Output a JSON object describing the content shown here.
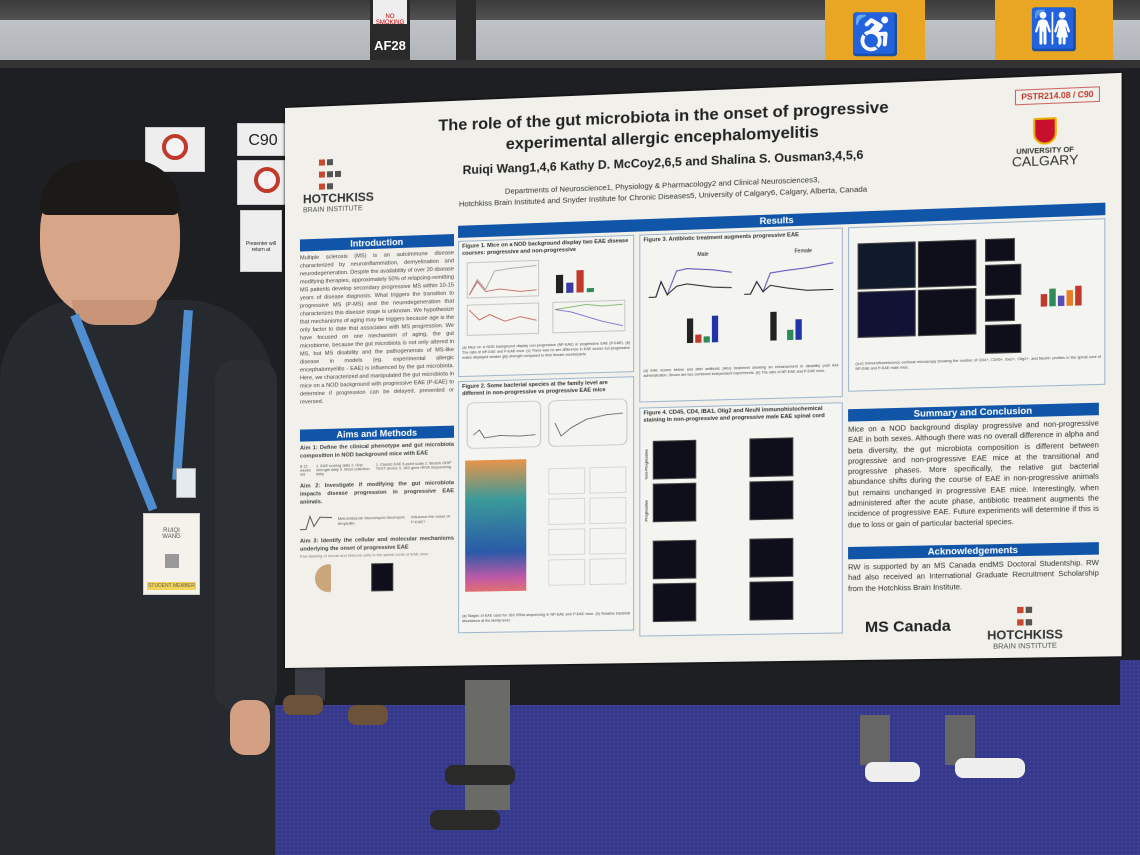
{
  "scene": {
    "pillar_label": "AF28",
    "no_smoking_sign": "NO SMOKING",
    "board_number": "C90",
    "no_photo_sign": "NO PHOTOS / RECORDING",
    "presenter_note": "Presenter will return at",
    "badge": {
      "name_line1": "RUIQI",
      "name_line2": "WANG",
      "ribbon": "STUDENT MEMBER"
    }
  },
  "poster": {
    "code": "PSTR214.08 / C90",
    "title_line1": "The role of the gut microbiota in the onset of progressive",
    "title_line2": "experimental allergic encephalomyelitis",
    "authors": "Ruiqi Wang1,4,6 Kathy D. McCoy2,6,5 and Shalina S. Ousman3,4,5,6",
    "affiliation_line1": "Departments of Neuroscience1, Physiology & Pharmacology2 and Clinical Neurosciences3,",
    "affiliation_line2": "Hotchkiss Brain Institute4 and Snyder Institute for Chronic Diseases5, University of Calgary6, Calgary, Alberta, Canada",
    "logo_left": {
      "name": "HOTCHKISS",
      "sub": "BRAIN INSTITUTE"
    },
    "logo_right": {
      "line1": "UNIVERSITY OF",
      "line2": "CALGARY"
    },
    "introduction": {
      "heading": "Introduction",
      "text": "Multiple sclerosis (MS) is an autoimmune disease characterized by neuroinflammation, demyelination and neurodegeneration. Despite the availability of over 20 disease modifying therapies, approximately 50% of relapsing-remitting MS patients develop secondary progressive MS within 10-15 years of disease diagnosis. What triggers the transition to progressive MS (P-MS) and the neurodegeneration that characterizes this disease stage is unknown. We hypothesize that mechanisms of aging may be triggers because age is the only factor to date that associates with MS progression. We have focused on one mechanism of aging, the gut microbiome, because the gut microbiota is not only altered in MS, but MS disability and the pathogenensis of MS-like disease in models (eg. experimental allergic encephalomyelitis - EAE) is influenced by the gut microbiota. Here, we characterized and manipulated the gut microbiota in mice on a NOD background with progressive EAE (P-EAE) to determine if progression can be delayed, prevented or reversed."
    },
    "aims": {
      "heading": "Aims and Methods",
      "aim1": "Aim 1: Define the clinical phenotype and gut microbiota composition in NOD background mice with EAE",
      "aim1_steps": "1. EAE scoring daily  2. Grip strength daily  3. Stool collection daily",
      "aim1_methods": "1. Classic EAE 5-point scale  2. Bioseb GRIP TEST device  3. 16S gene rRNA Sequencing",
      "aim1_age": "8-12 weeks old",
      "aim2": "Aim 2: Investigate if modifying the gut microbiota impacts disease progression in progressive EAE animals.",
      "aim2_drugs": "Metronidazole  Vancomycin  Neomycin  Ampicillin",
      "aim2_effect": "Influence the onset of P-EAE?",
      "aim3": "Aim 3: Identify the cellular and molecular mechanisms underlying the onset of progressive EAE",
      "aim3_sub": "Pan-staining of neural and immune cells in the spinal cords of EAE mice"
    },
    "results": {
      "heading": "Results",
      "fig1": "Figure 1. Mice on a NOD background display two EAE disease courses: progressive and non-progressive",
      "fig1_caption": "(a) Mice on a NOD background display non-progressive (NP-EAE) or progressive EAE (P-EAE). (b) The ratio of NP-EAE and P-EAE mice. (c) There was no sex difference in EAE scores but progressive males displayed weaker grip strength compared to their female counterparts.",
      "fig2": "Figure 2. Some bacterial species at the family level are different in non-progressive vs progressive EAE mice",
      "fig2_caption": "(a) Stages of EAE used for 16S rRNA sequencing in NP-EAE and P-EAE mice. (b) Relative bacterial abundance at the family level.",
      "fig3": "Figure 3. Antibiotic treatment augments progressive EAE",
      "fig3_male": "Male",
      "fig3_female": "Female",
      "fig3_caption": "(a) EAE scores before and after antibiotic (Abx) treatment showing an enhancement in disability post Abx administration. Shown are two combined independent experiments. (b) The ratio of NP-EAE and P-EAE mice.",
      "fig4": "Figure 4. CD45, CD4, IBA1, Olig2 and NeuN immunohistochemical staining in non-progressive and progressive male EAE spinal cord",
      "fig5_caption": "(a-e) Immunofluorescence confocal microscopy showing the number of CD4+, CD45+, Iba1+, Olig2+, and NeuN+ profiles in the spinal cord of NP-EAE and P-EAE male mice.",
      "label_nonprog": "Non-Progressive",
      "label_prog": "Progressive"
    },
    "summary": {
      "heading": "Summary and Conclusion",
      "text": "Mice on a NOD background display progressive and non-progressive EAE in both sexes. Although there was no overall difference in alpha and beta diversity, the gut microbiota composition is different between progressive and non-progressive EAE mice at the transitional and progressive phases. More specifically, the relative gut bacterial abundance shifts during the course of EAE in non-progressive animals but remains unchanged in progressive EAE mice. Interestingly, when administered after the acute phase, antibiotic treatment augments the incidence of progressive EAE. Future experiments will determine if this is due to loss or gain of particular bacterial species."
    },
    "acknowledgements": {
      "heading": "Acknowledgements",
      "text": "RW is supported by an MS Canada endMS Doctoral Studentship. RW had also received an International Graduate Recruitment Scholarship from the Hotchkiss Brain Institute."
    },
    "sponsor_logo": "MS Canada",
    "colors": {
      "header_blue": "#1155a8",
      "hotchkiss_red": "#c84a2e",
      "calgary_red": "#c8102e"
    }
  }
}
